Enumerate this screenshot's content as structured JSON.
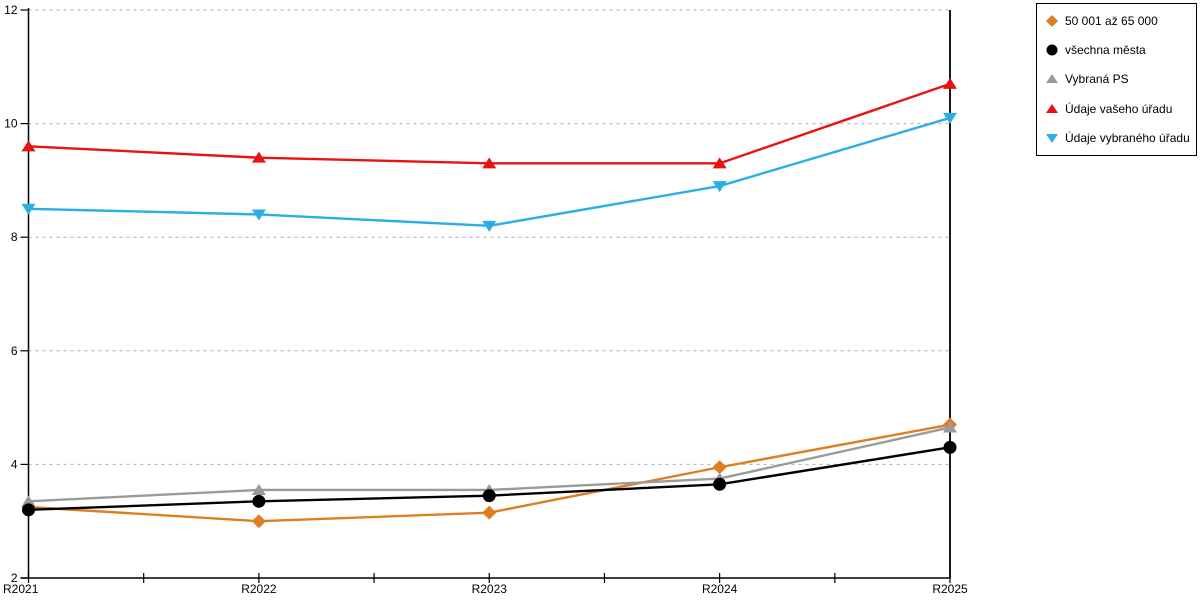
{
  "chart_data": {
    "type": "line",
    "title": "",
    "xlabel": "",
    "ylabel": "",
    "categories": [
      "R2021",
      "R2022",
      "R2023",
      "R2024",
      "R2025"
    ],
    "ylim": [
      2,
      12
    ],
    "yticks": [
      2,
      4,
      6,
      8,
      10,
      12
    ],
    "grid": "horizontal-dotted",
    "gridline_color": "#ADADAD",
    "axis_color": "#000000",
    "legend_position": "top-right",
    "series": [
      {
        "name": "50 001 až 65 000",
        "marker": "diamond",
        "color": "#DE7E23",
        "values": [
          3.25,
          3.0,
          3.15,
          3.95,
          4.7
        ]
      },
      {
        "name": "všechna města",
        "marker": "circle",
        "color": "#000000",
        "values": [
          3.2,
          3.35,
          3.45,
          3.65,
          4.3
        ]
      },
      {
        "name": "Vybraná PS",
        "marker": "triangle-up",
        "color": "#9A9A9A",
        "values": [
          3.35,
          3.55,
          3.55,
          3.75,
          4.65
        ]
      },
      {
        "name": "Údaje vašeho úřadu",
        "marker": "triangle-up",
        "color": "#E81212",
        "values": [
          9.6,
          9.4,
          9.3,
          9.3,
          10.7
        ]
      },
      {
        "name": "Údaje vybraného úřadu",
        "marker": "triangle-down",
        "color": "#29AFE5",
        "values": [
          8.5,
          8.4,
          8.2,
          8.9,
          10.1
        ]
      }
    ]
  }
}
